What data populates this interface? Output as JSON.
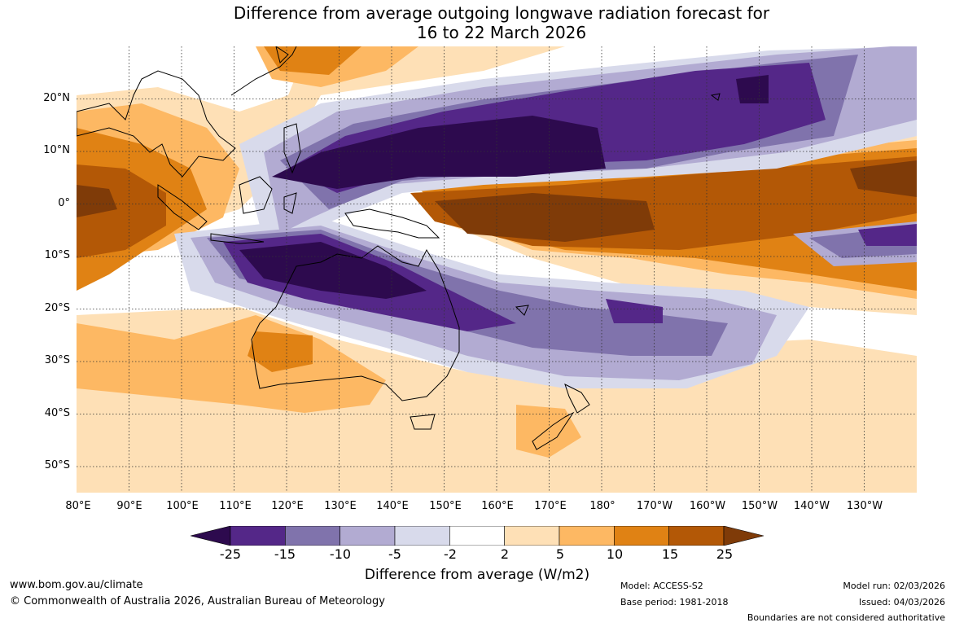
{
  "title": {
    "line1": "Difference from average outgoing longwave radiation forecast for",
    "line2": "16 to 22 March 2026"
  },
  "map": {
    "lat_labels": [
      "20°N",
      "10°N",
      "0°",
      "10°S",
      "20°S",
      "30°S",
      "40°S",
      "50°S"
    ],
    "lon_labels": [
      "80°E",
      "90°E",
      "100°E",
      "110°E",
      "120°E",
      "130°E",
      "140°E",
      "150°E",
      "160°E",
      "170°E",
      "180°",
      "170°W",
      "160°W",
      "150°W",
      "140°W",
      "130°W"
    ],
    "extent": {
      "lon_min": 80,
      "lon_max": 240,
      "lat_min": -55,
      "lat_max": 30
    }
  },
  "colorbar": {
    "ticks": [
      "-25",
      "-15",
      "-10",
      "-5",
      "-2",
      "2",
      "5",
      "10",
      "15",
      "25"
    ],
    "colors": [
      "#2d0a4e",
      "#542788",
      "#8073ac",
      "#b2abd2",
      "#d8daeb",
      "#ffffff",
      "#fee0b6",
      "#fdb863",
      "#e08214",
      "#b35806",
      "#7f3b08"
    ],
    "label": "Difference from average (W/m2)"
  },
  "footer": {
    "url": "www.bom.gov.au/climate",
    "copyright": "© Commonwealth of Australia 2026, Australian Bureau of Meteorology",
    "model": "Model: ACCESS-S2",
    "base_period": "Base period: 1981-2018",
    "model_run": "Model run: 02/03/2026",
    "issued": "Issued: 04/03/2026",
    "boundaries": "Boundaries are not considered authoritative"
  }
}
